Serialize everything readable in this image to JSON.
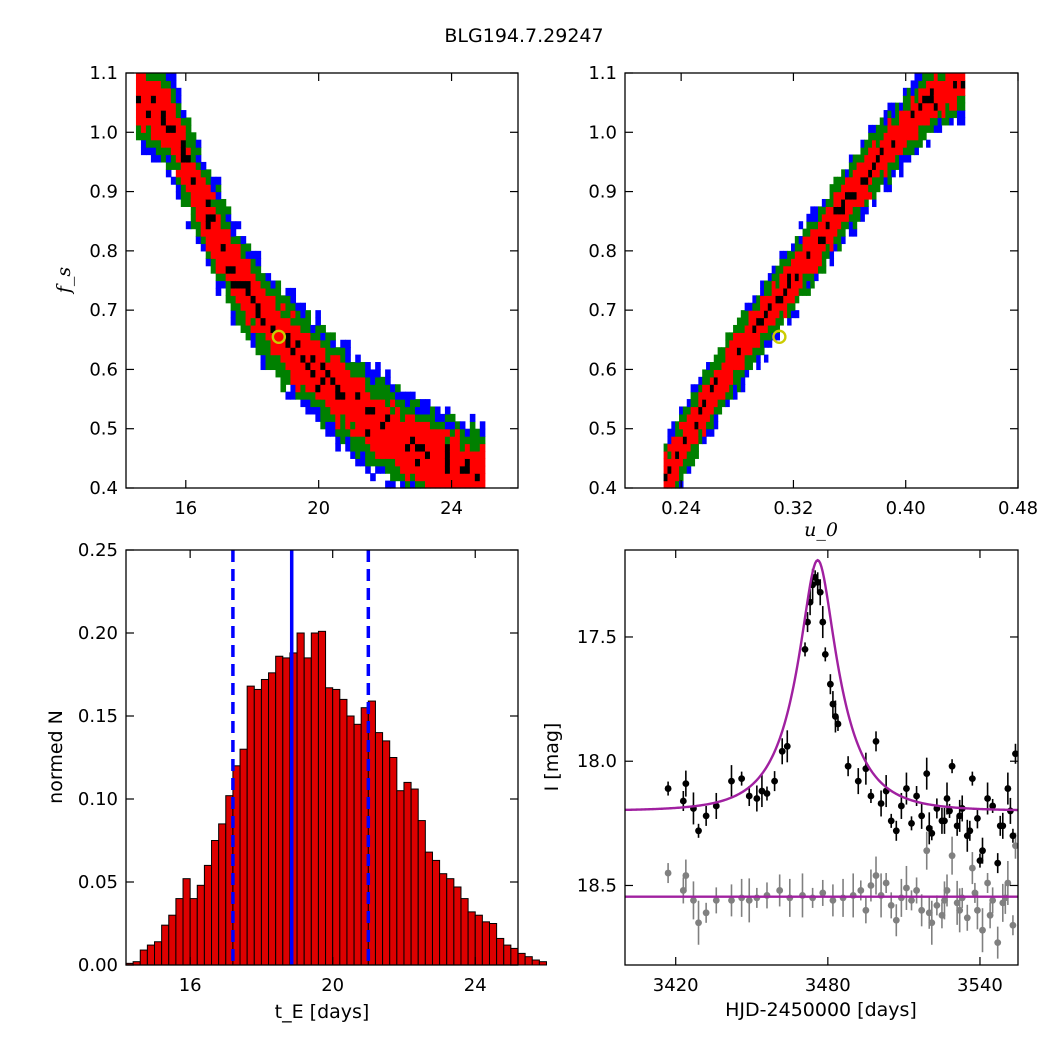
{
  "figure": {
    "title": "BLG194.7.29247"
  },
  "colors": {
    "sigma3": "#0000ff",
    "sigma2": "#008000",
    "sigma1": "#ff0000",
    "best": "#000000",
    "marker": "#cccc00",
    "hist_fill": "#dd0000",
    "model": "#a020a0",
    "grey_data": "#808080",
    "vline": "#0000ff"
  },
  "chart_data": [
    {
      "type": "heatmap",
      "name": "tE vs fs confidence map",
      "xlabel": "",
      "ylabel": "f_s",
      "xlim": [
        14.2,
        26.0
      ],
      "ylim": [
        0.4,
        1.1
      ],
      "xticks": [
        "16",
        "20",
        "24"
      ],
      "xtick_values": [
        16,
        20,
        24
      ],
      "yticks": [
        "0.4",
        "0.5",
        "0.6",
        "0.7",
        "0.8",
        "0.9",
        "1.0",
        "1.1"
      ],
      "ytick_values": [
        0.4,
        0.5,
        0.6,
        0.7,
        0.8,
        0.9,
        1.0,
        1.1
      ],
      "ridge": [
        [
          14.5,
          1.07
        ],
        [
          15.5,
          1.02
        ],
        [
          16.5,
          0.88
        ],
        [
          17.5,
          0.76
        ],
        [
          18.5,
          0.68
        ],
        [
          19.5,
          0.62
        ],
        [
          20.5,
          0.57
        ],
        [
          21.5,
          0.52
        ],
        [
          22.5,
          0.48
        ],
        [
          23.5,
          0.45
        ],
        [
          24.7,
          0.425
        ]
      ],
      "best_fit": [
        18.8,
        0.655
      ]
    },
    {
      "type": "heatmap",
      "name": "u0 vs fs confidence map",
      "xlabel": "u_0",
      "ylabel": "",
      "xlim": [
        0.2,
        0.48
      ],
      "ylim": [
        0.4,
        1.1
      ],
      "xticks": [
        "0.24",
        "0.32",
        "0.40",
        "0.48"
      ],
      "xtick_values": [
        0.24,
        0.32,
        0.4,
        0.48
      ],
      "yticks": [
        "0.4",
        "0.5",
        "0.6",
        "0.7",
        "0.8",
        "0.9",
        "1.0",
        "1.1"
      ],
      "ytick_values": [
        0.4,
        0.5,
        0.6,
        0.7,
        0.8,
        0.9,
        1.0,
        1.1
      ],
      "ridge": [
        [
          0.2285,
          0.415
        ],
        [
          0.24,
          0.465
        ],
        [
          0.26,
          0.55
        ],
        [
          0.28,
          0.625
        ],
        [
          0.3,
          0.69
        ],
        [
          0.32,
          0.755
        ],
        [
          0.34,
          0.825
        ],
        [
          0.36,
          0.89
        ],
        [
          0.38,
          0.955
        ],
        [
          0.4,
          1.01
        ],
        [
          0.42,
          1.06
        ],
        [
          0.4375,
          1.085
        ]
      ],
      "best_fit": [
        0.31,
        0.655
      ]
    },
    {
      "type": "bar",
      "name": "tE histogram",
      "xlabel": "t_E  [days]",
      "ylabel": "normed N",
      "xlim": [
        14.2,
        25.2
      ],
      "ylim": [
        0,
        0.25
      ],
      "xticks": [
        "16",
        "20",
        "24"
      ],
      "xtick_values": [
        16,
        20,
        24
      ],
      "yticks": [
        "0.00",
        "0.05",
        "0.10",
        "0.15",
        "0.20",
        "0.25"
      ],
      "ytick_values": [
        0,
        0.05,
        0.1,
        0.15,
        0.2,
        0.25
      ],
      "bin_start": 14.2,
      "bin_width": 0.2,
      "values": [
        0.001,
        0.002,
        0.009,
        0.012,
        0.014,
        0.024,
        0.03,
        0.04,
        0.052,
        0.04,
        0.048,
        0.06,
        0.075,
        0.085,
        0.102,
        0.12,
        0.13,
        0.168,
        0.166,
        0.172,
        0.176,
        0.186,
        0.185,
        0.188,
        0.2,
        0.185,
        0.2,
        0.201,
        0.167,
        0.166,
        0.16,
        0.15,
        0.145,
        0.155,
        0.159,
        0.14,
        0.135,
        0.125,
        0.105,
        0.11,
        0.106,
        0.087,
        0.068,
        0.063,
        0.055,
        0.052,
        0.047,
        0.04,
        0.032,
        0.03,
        0.026,
        0.025,
        0.016,
        0.012,
        0.01,
        0.007,
        0.005,
        0.003,
        0.002
      ],
      "vlines": [
        {
          "x": 18.85,
          "style": "solid"
        },
        {
          "x": 17.2,
          "style": "dashed"
        },
        {
          "x": 21.0,
          "style": "dashed"
        }
      ]
    },
    {
      "type": "scatter",
      "name": "light curve",
      "xlabel": "HJD-2450000 [days]",
      "ylabel": "I [mag]",
      "xlim": [
        3400,
        3555
      ],
      "ylim": [
        18.82,
        17.15
      ],
      "xticks": [
        "3420",
        "3480",
        "3540"
      ],
      "xtick_values": [
        3420,
        3480,
        3540
      ],
      "yticks": [
        "17.5",
        "18.0",
        "18.5"
      ],
      "ytick_values": [
        17.5,
        18.0,
        18.5
      ],
      "model": {
        "t0": 3476,
        "tE": 18.8,
        "u0": 0.31,
        "baseline": 18.2,
        "fs": 0.655
      },
      "grey_model": {
        "baseline": 18.545
      },
      "series": [
        {
          "role": "observed",
          "x": [
            3417,
            3423,
            3424,
            3427,
            3429,
            3432,
            3436,
            3442,
            3446,
            3449,
            3452,
            3454,
            3456,
            3459,
            3462,
            3464,
            3471,
            3472,
            3473,
            3474,
            3475,
            3476,
            3477,
            3478,
            3479,
            3481,
            3482,
            3483,
            3484,
            3488,
            3492,
            3495,
            3497,
            3499,
            3501,
            3503,
            3505,
            3507,
            3509,
            3511,
            3513,
            3515,
            3517,
            3519,
            3521,
            3523,
            3525,
            3527,
            3529,
            3531,
            3533,
            3535,
            3537,
            3539,
            3541,
            3543,
            3545,
            3547,
            3549,
            3551,
            3553,
            3554,
            3526,
            3532,
            3540,
            3548,
            3552,
            3520,
            3528,
            3536
          ],
          "y": [
            18.11,
            18.16,
            18.09,
            18.19,
            18.28,
            18.22,
            18.18,
            18.08,
            18.07,
            18.14,
            18.15,
            18.12,
            18.13,
            18.08,
            17.96,
            17.94,
            17.55,
            17.44,
            17.36,
            17.29,
            17.26,
            17.28,
            17.32,
            17.44,
            17.57,
            17.69,
            17.77,
            17.82,
            17.85,
            18.02,
            18.08,
            18.03,
            18.14,
            17.92,
            18.17,
            18.12,
            18.24,
            18.28,
            18.18,
            18.11,
            18.25,
            18.14,
            18.22,
            18.05,
            18.29,
            18.19,
            18.24,
            18.15,
            18.02,
            18.26,
            18.19,
            18.3,
            18.07,
            18.23,
            18.36,
            18.15,
            18.18,
            18.41,
            18.26,
            18.11,
            18.3,
            17.97,
            18.24,
            18.22,
            18.4,
            18.26,
            18.2,
            18.27,
            18.2,
            18.28
          ]
        },
        {
          "role": "residual",
          "x": [
            3417,
            3423,
            3424,
            3427,
            3429,
            3432,
            3436,
            3442,
            3446,
            3449,
            3452,
            3456,
            3461,
            3465,
            3470,
            3474,
            3478,
            3482,
            3486,
            3490,
            3493,
            3495,
            3497,
            3499,
            3501,
            3503,
            3505,
            3507,
            3509,
            3511,
            3513,
            3515,
            3517,
            3519,
            3521,
            3523,
            3525,
            3527,
            3529,
            3531,
            3533,
            3535,
            3537,
            3539,
            3541,
            3543,
            3545,
            3547,
            3549,
            3551,
            3553,
            3554,
            3520,
            3526,
            3532,
            3538,
            3544,
            3550
          ],
          "y": [
            18.45,
            18.52,
            18.46,
            18.56,
            18.65,
            18.61,
            18.56,
            18.56,
            18.55,
            18.56,
            18.55,
            18.54,
            18.52,
            18.55,
            18.54,
            18.55,
            18.53,
            18.56,
            18.55,
            18.54,
            18.52,
            18.6,
            18.5,
            18.46,
            18.54,
            18.49,
            18.58,
            18.64,
            18.55,
            18.51,
            18.56,
            18.52,
            18.6,
            18.36,
            18.65,
            18.58,
            18.62,
            18.52,
            18.38,
            18.57,
            18.55,
            18.63,
            18.43,
            18.6,
            18.68,
            18.49,
            18.56,
            18.73,
            18.57,
            18.49,
            18.66,
            18.34,
            18.61,
            18.56,
            18.6,
            18.53,
            18.62,
            18.55
          ]
        }
      ]
    }
  ]
}
